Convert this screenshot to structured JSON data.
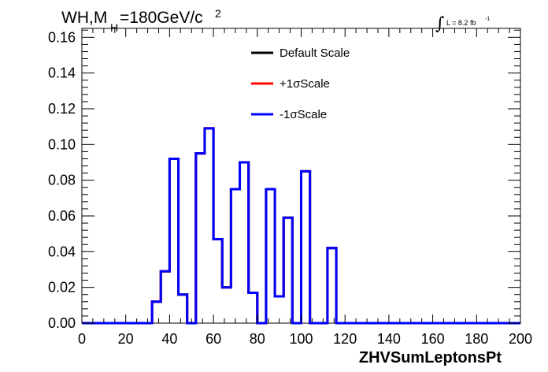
{
  "chart_data": {
    "type": "step",
    "title": {
      "prefix": "WH,M",
      "subscript": "H",
      "suffix": "=180GeV/c",
      "superscript": "2"
    },
    "luminosity": {
      "text": "L = 8.2 fb",
      "superscript": "-1"
    },
    "xlabel": "ZHVSumLeptonsPt",
    "ylabel": "",
    "xlim": [
      0,
      200
    ],
    "ylim": [
      0,
      0.165
    ],
    "xticks": [
      0,
      20,
      40,
      60,
      80,
      100,
      120,
      140,
      160,
      180,
      200
    ],
    "yticks": [
      0.0,
      0.02,
      0.04,
      0.06,
      0.08,
      0.1,
      0.12,
      0.14,
      0.16
    ],
    "xtick_labels": [
      "0",
      "20",
      "40",
      "60",
      "80",
      "100",
      "120",
      "140",
      "160",
      "180",
      "200"
    ],
    "ytick_labels": [
      "0.00",
      "0.02",
      "0.04",
      "0.06",
      "0.08",
      "0.10",
      "0.12",
      "0.14",
      "0.16"
    ],
    "bin_width": 4,
    "bin_start": 0,
    "legend_position": "top-center",
    "series": [
      {
        "name": "Default Scale",
        "color": "#000000",
        "values": [
          0,
          0,
          0,
          0,
          0,
          0,
          0,
          0,
          0.012,
          0.029,
          0.092,
          0.016,
          0,
          0.095,
          0.109,
          0.047,
          0.02,
          0.075,
          0.09,
          0.017,
          0,
          0.075,
          0.015,
          0.059,
          0,
          0.085,
          0,
          0,
          0.042,
          0,
          0,
          0,
          0,
          0,
          0,
          0,
          0,
          0,
          0,
          0,
          0,
          0,
          0,
          0,
          0,
          0,
          0,
          0,
          0,
          0
        ]
      },
      {
        "name": "+1σScale",
        "color": "#ff0000",
        "values": [
          0,
          0,
          0,
          0,
          0,
          0,
          0,
          0,
          0.012,
          0.029,
          0.092,
          0.016,
          0,
          0.095,
          0.109,
          0.047,
          0.02,
          0.075,
          0.09,
          0.017,
          0,
          0.075,
          0.015,
          0.059,
          0,
          0.085,
          0,
          0,
          0.042,
          0,
          0,
          0,
          0,
          0,
          0,
          0,
          0,
          0,
          0,
          0,
          0,
          0,
          0,
          0,
          0,
          0,
          0,
          0,
          0,
          0
        ]
      },
      {
        "name": "-1σScale",
        "color": "#0000ff",
        "values": [
          0,
          0,
          0,
          0,
          0,
          0,
          0,
          0,
          0.012,
          0.029,
          0.092,
          0.016,
          0,
          0.095,
          0.109,
          0.047,
          0.02,
          0.075,
          0.09,
          0.017,
          0,
          0.075,
          0.015,
          0.059,
          0,
          0.085,
          0,
          0,
          0.042,
          0,
          0,
          0,
          0,
          0,
          0,
          0,
          0,
          0,
          0,
          0,
          0,
          0,
          0,
          0,
          0,
          0,
          0,
          0,
          0,
          0
        ]
      }
    ]
  }
}
